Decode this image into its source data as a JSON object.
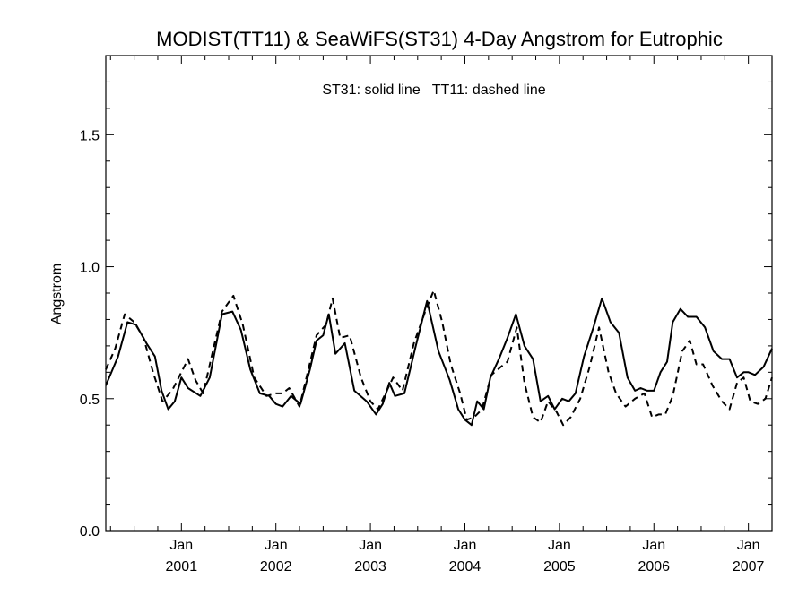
{
  "chart_data": {
    "type": "line",
    "title": "MODIST(TT11) & SeaWiFS(ST31) 4-Day Angstrom for Eutrophic",
    "annotation": "ST31: solid line   TT11: dashed line",
    "xlabel": "",
    "ylabel": "Angstrom",
    "xlim": [
      2000.2,
      2007.25
    ],
    "ylim": [
      0.0,
      1.8
    ],
    "y_ticks": [
      {
        "value": 0.0,
        "label": "0.0"
      },
      {
        "value": 0.5,
        "label": "0.5"
      },
      {
        "value": 1.0,
        "label": "1.0"
      },
      {
        "value": 1.5,
        "label": "1.5"
      }
    ],
    "x_ticks": [
      {
        "value": 2001.0,
        "month": "Jan",
        "year": "2001"
      },
      {
        "value": 2002.0,
        "month": "Jan",
        "year": "2002"
      },
      {
        "value": 2003.0,
        "month": "Jan",
        "year": "2003"
      },
      {
        "value": 2004.0,
        "month": "Jan",
        "year": "2004"
      },
      {
        "value": 2005.0,
        "month": "Jan",
        "year": "2005"
      },
      {
        "value": 2006.0,
        "month": "Jan",
        "year": "2006"
      },
      {
        "value": 2007.0,
        "month": "Jan",
        "year": "2007"
      }
    ],
    "series": [
      {
        "name": "ST31",
        "style": "solid",
        "color": "#000000",
        "x": [
          2000.2,
          2000.33,
          2000.43,
          2000.52,
          2000.63,
          2000.72,
          2000.79,
          2000.86,
          2000.93,
          2001.0,
          2001.07,
          2001.2,
          2001.3,
          2001.43,
          2001.54,
          2001.63,
          2001.73,
          2001.83,
          2001.93,
          2002.0,
          2002.07,
          2002.16,
          2002.26,
          2002.36,
          2002.43,
          2002.5,
          2002.56,
          2002.63,
          2002.73,
          2002.83,
          2002.96,
          2003.06,
          2003.13,
          2003.2,
          2003.26,
          2003.36,
          2003.48,
          2003.6,
          2003.72,
          2003.84,
          2003.93,
          2004.0,
          2004.07,
          2004.13,
          2004.2,
          2004.27,
          2004.36,
          2004.45,
          2004.54,
          2004.63,
          2004.72,
          2004.8,
          2004.88,
          2004.95,
          2005.03,
          2005.1,
          2005.17,
          2005.26,
          2005.36,
          2005.45,
          2005.54,
          2005.63,
          2005.72,
          2005.8,
          2005.86,
          2005.93,
          2006.0,
          2006.07,
          2006.14,
          2006.2,
          2006.28,
          2006.36,
          2006.45,
          2006.54,
          2006.63,
          2006.72,
          2006.8,
          2006.88,
          2006.95,
          2007.0,
          2007.07,
          2007.16,
          2007.25
        ],
        "values": [
          0.55,
          0.66,
          0.79,
          0.78,
          0.71,
          0.66,
          0.53,
          0.46,
          0.49,
          0.58,
          0.54,
          0.51,
          0.58,
          0.82,
          0.83,
          0.76,
          0.61,
          0.52,
          0.51,
          0.48,
          0.47,
          0.51,
          0.48,
          0.61,
          0.72,
          0.74,
          0.82,
          0.67,
          0.71,
          0.53,
          0.49,
          0.44,
          0.48,
          0.56,
          0.51,
          0.52,
          0.7,
          0.87,
          0.68,
          0.57,
          0.46,
          0.42,
          0.4,
          0.49,
          0.46,
          0.58,
          0.65,
          0.73,
          0.82,
          0.7,
          0.65,
          0.49,
          0.51,
          0.46,
          0.5,
          0.49,
          0.52,
          0.66,
          0.77,
          0.88,
          0.79,
          0.75,
          0.58,
          0.53,
          0.54,
          0.53,
          0.53,
          0.6,
          0.64,
          0.79,
          0.84,
          0.81,
          0.81,
          0.77,
          0.68,
          0.65,
          0.65,
          0.58,
          0.6,
          0.6,
          0.59,
          0.62,
          0.69
        ]
      },
      {
        "name": "TT11",
        "style": "dashed",
        "color": "#000000",
        "x": [
          2000.2,
          2000.3,
          2000.4,
          2000.5,
          2000.6,
          2000.7,
          2000.8,
          2000.9,
          2001.0,
          2001.07,
          2001.15,
          2001.23,
          2001.32,
          2001.43,
          2001.55,
          2001.65,
          2001.77,
          2001.9,
          2002.0,
          2002.07,
          2002.14,
          2002.25,
          2002.35,
          2002.43,
          2002.53,
          2002.6,
          2002.68,
          2002.78,
          2002.9,
          2003.0,
          2003.08,
          2003.16,
          2003.24,
          2003.34,
          2003.46,
          2003.58,
          2003.67,
          2003.76,
          2003.85,
          2003.95,
          2004.02,
          2004.1,
          2004.18,
          2004.28,
          2004.38,
          2004.45,
          2004.55,
          2004.63,
          2004.72,
          2004.8,
          2004.88,
          2004.97,
          2005.04,
          2005.12,
          2005.22,
          2005.32,
          2005.42,
          2005.52,
          2005.6,
          2005.7,
          2005.8,
          2005.9,
          2005.98,
          2006.05,
          2006.12,
          2006.2,
          2006.3,
          2006.38,
          2006.45,
          2006.52,
          2006.62,
          2006.72,
          2006.8,
          2006.88,
          2006.95,
          2007.02,
          2007.1,
          2007.18,
          2007.25
        ],
        "values": [
          0.61,
          0.69,
          0.82,
          0.79,
          0.73,
          0.6,
          0.49,
          0.53,
          0.6,
          0.65,
          0.57,
          0.52,
          0.66,
          0.83,
          0.89,
          0.78,
          0.58,
          0.51,
          0.52,
          0.52,
          0.54,
          0.47,
          0.62,
          0.74,
          0.78,
          0.88,
          0.73,
          0.74,
          0.58,
          0.49,
          0.46,
          0.52,
          0.58,
          0.53,
          0.71,
          0.83,
          0.91,
          0.79,
          0.63,
          0.52,
          0.42,
          0.43,
          0.46,
          0.59,
          0.62,
          0.64,
          0.77,
          0.56,
          0.43,
          0.41,
          0.49,
          0.45,
          0.4,
          0.43,
          0.5,
          0.62,
          0.77,
          0.6,
          0.52,
          0.47,
          0.5,
          0.52,
          0.43,
          0.44,
          0.44,
          0.51,
          0.68,
          0.72,
          0.63,
          0.63,
          0.55,
          0.49,
          0.46,
          0.56,
          0.58,
          0.49,
          0.48,
          0.5,
          0.58
        ]
      }
    ]
  }
}
